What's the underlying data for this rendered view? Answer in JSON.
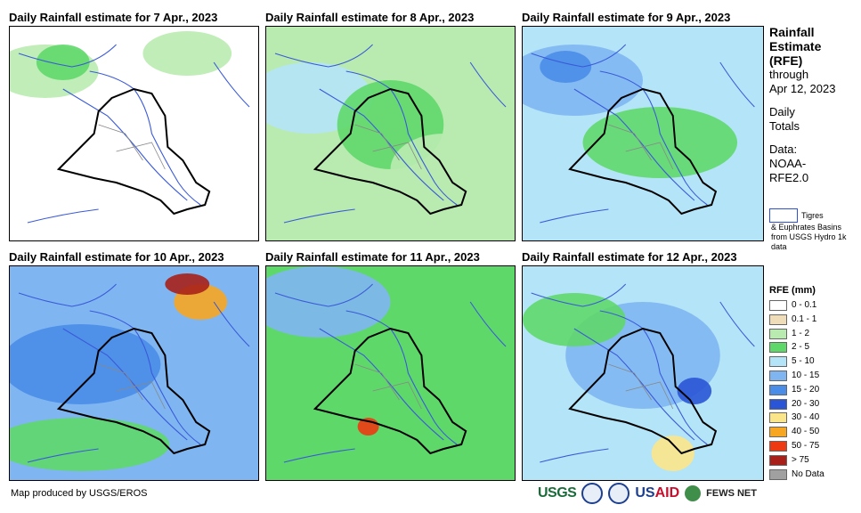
{
  "panels": [
    {
      "title": "Daily Rainfall estimate for 7 Apr., 2023",
      "dominant_rainfall": "0 - 0.1"
    },
    {
      "title": "Daily Rainfall estimate for 8 Apr., 2023",
      "dominant_rainfall": "1 - 2"
    },
    {
      "title": "Daily Rainfall estimate for 9 Apr., 2023",
      "dominant_rainfall": "5 - 10"
    },
    {
      "title": "Daily Rainfall estimate for 10 Apr., 2023",
      "dominant_rainfall": "10 - 15"
    },
    {
      "title": "Daily Rainfall estimate for 11 Apr., 2023",
      "dominant_rainfall": "2 - 5"
    },
    {
      "title": "Daily Rainfall estimate for 12 Apr., 2023",
      "dominant_rainfall": "5 - 10"
    }
  ],
  "sidebar": {
    "title_lines": [
      "Rainfall",
      "Estimate",
      "(RFE)"
    ],
    "through_lines": [
      "through",
      "Apr 12, 2023"
    ],
    "daily_lines": [
      "Daily",
      "Totals"
    ],
    "data_lines": [
      "Data:",
      "NOAA-",
      "RFE2.0"
    ]
  },
  "basin_legend": {
    "label_1": "Tigres",
    "label_2": "& Euphrates Basins from USGS Hydro 1k data"
  },
  "rfe_legend": {
    "title": "RFE (mm)",
    "entries": [
      {
        "label": "0 - 0.1",
        "color": "#ffffff"
      },
      {
        "label": "0.1 - 1",
        "color": "#efdcb8"
      },
      {
        "label": "1 - 2",
        "color": "#b9ebb0"
      },
      {
        "label": "2 - 5",
        "color": "#5fd86a"
      },
      {
        "label": "5 - 10",
        "color": "#b4e4f8"
      },
      {
        "label": "10 - 15",
        "color": "#7fb6f2"
      },
      {
        "label": "15 - 20",
        "color": "#4a8de8"
      },
      {
        "label": "20 - 30",
        "color": "#2a55d6"
      },
      {
        "label": "30 - 40",
        "color": "#fbe58a"
      },
      {
        "label": "40 - 50",
        "color": "#f7a622"
      },
      {
        "label": "50 - 75",
        "color": "#ee3a12"
      },
      {
        "label": "> 75",
        "color": "#a8201a"
      },
      {
        "label": "No Data",
        "color": "#a0a0a0"
      }
    ]
  },
  "footer": {
    "credit": "Map produced by USGS/EROS",
    "logo_usgs": "USGS",
    "logo_usaid_1": "US",
    "logo_usaid_2": "AID",
    "logo_fews": "FEWS NET"
  }
}
